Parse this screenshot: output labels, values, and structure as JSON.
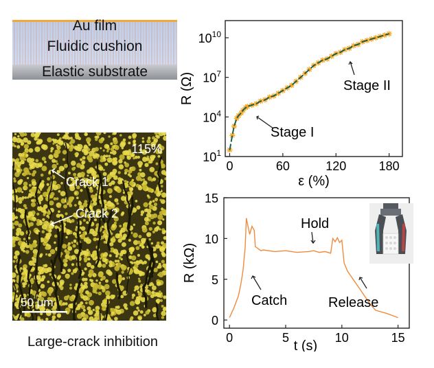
{
  "schematic": {
    "layer_top": "Au film",
    "layer_middle": "Fluidic cushion",
    "layer_bottom": "Elastic substrate"
  },
  "micrograph": {
    "strain_label": "115%",
    "crack_1": "Crack 1",
    "crack_2": "Crack 2",
    "scale_bar": "50 μm",
    "caption": "Large-crack inhibition"
  },
  "chart_data": [
    {
      "type": "scatter",
      "xlabel": "ε (%)",
      "ylabel": "R (Ω)",
      "xlim": [
        -5,
        195
      ],
      "x_ticks": [
        0,
        60,
        120,
        180
      ],
      "y_scale": "log",
      "ylim_exp": [
        1,
        11.3
      ],
      "y_tick_labels": [
        {
          "base": "10",
          "exp": "1"
        },
        {
          "base": "10",
          "exp": "4"
        },
        {
          "base": "10",
          "exp": "7"
        },
        {
          "base": "10",
          "exp": "10"
        }
      ],
      "annotations": [
        "Stage I",
        "Stage II"
      ],
      "series": [
        {
          "marker_color": "#f5a623",
          "fit_color": "#1f5d4a",
          "x": [
            0,
            3,
            5,
            8,
            10,
            13,
            15,
            18,
            20,
            25,
            30,
            35,
            40,
            45,
            50,
            55,
            60,
            65,
            70,
            75,
            80,
            85,
            90,
            95,
            100,
            105,
            110,
            115,
            120,
            125,
            130,
            135,
            140,
            145,
            150,
            155,
            160,
            165,
            170,
            175,
            180
          ],
          "log_y": [
            1.5,
            2.6,
            3.3,
            3.9,
            4.1,
            4.3,
            4.5,
            4.7,
            4.8,
            4.9,
            5.0,
            5.2,
            5.3,
            5.5,
            5.6,
            5.8,
            6.0,
            6.2,
            6.4,
            6.7,
            7.0,
            7.3,
            7.6,
            7.9,
            8.1,
            8.3,
            8.4,
            8.6,
            8.8,
            8.9,
            9.1,
            9.2,
            9.4,
            9.5,
            9.7,
            9.8,
            9.9,
            10.0,
            10.1,
            10.2,
            10.3
          ]
        }
      ]
    },
    {
      "type": "line",
      "xlabel": "t (s)",
      "ylabel": "R (kΩ)",
      "xlim": [
        -0.5,
        16
      ],
      "ylim": [
        -1,
        15
      ],
      "x_ticks": [
        0,
        5,
        10,
        15
      ],
      "y_ticks": [
        0,
        5,
        10,
        15
      ],
      "annotations": [
        "Catch",
        "Hold",
        "Release"
      ],
      "series": [
        {
          "color": "#f08a3c",
          "x": [
            0,
            0.4,
            0.8,
            1.0,
            1.2,
            1.4,
            1.5,
            1.6,
            1.8,
            2.0,
            2.2,
            2.3,
            2.5,
            2.8,
            3.0,
            4.0,
            5.0,
            6.0,
            7.0,
            7.5,
            8.0,
            8.5,
            9.0,
            9.2,
            9.4,
            9.6,
            9.8,
            10.0,
            10.2,
            10.5,
            11.0,
            11.5,
            12.0,
            12.5,
            13.0,
            14.0,
            15.0
          ],
          "y": [
            0.3,
            1.5,
            3.0,
            4.3,
            6.0,
            9.0,
            12.5,
            11.8,
            10.5,
            11.5,
            11.0,
            9.0,
            8.8,
            8.5,
            8.6,
            8.4,
            8.5,
            8.3,
            8.4,
            8.5,
            8.3,
            8.4,
            8.2,
            10.0,
            9.6,
            10.1,
            9.5,
            9.8,
            7.0,
            6.0,
            5.0,
            4.0,
            3.0,
            2.0,
            1.2,
            0.8,
            0.3
          ]
        }
      ]
    }
  ]
}
